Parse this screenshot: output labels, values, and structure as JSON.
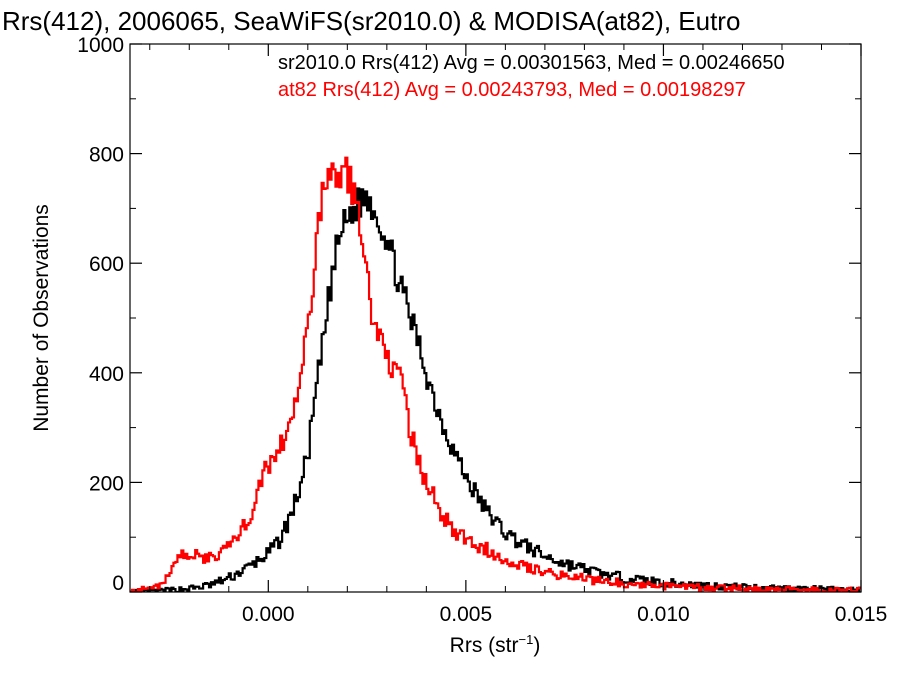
{
  "chart_data": {
    "type": "line",
    "title": "Rrs(412), 2006065, SeaWiFS(sr2010.0) & MODISA(at82), Eutro",
    "xlabel": "Rrs (str",
    "xlabel_sup": "−1",
    "xlabel_close": ")",
    "ylabel": "Number of Observations",
    "xlim": [
      -0.0035,
      0.015
    ],
    "ylim": [
      0,
      1000
    ],
    "xticks": [
      0.0,
      0.005,
      0.01,
      0.015
    ],
    "xtick_labels": [
      "0.000",
      "0.005",
      "0.010",
      "0.015"
    ],
    "yticks": [
      0,
      200,
      400,
      600,
      800,
      1000
    ],
    "ytick_labels": [
      "0",
      "200",
      "400",
      "600",
      "800",
      "1000"
    ],
    "grid": false,
    "series": [
      {
        "name": "sr2010.0",
        "color": "#000000",
        "legend": "sr2010.0 Rrs(412) Avg = 0.00301563, Med = 0.00246650",
        "points": [
          [
            -0.0035,
            0
          ],
          [
            -0.003,
            1
          ],
          [
            -0.0025,
            3
          ],
          [
            -0.002,
            6
          ],
          [
            -0.0015,
            12
          ],
          [
            -0.001,
            25
          ],
          [
            -0.0005,
            45
          ],
          [
            0.0,
            70
          ],
          [
            0.0003,
            95
          ],
          [
            0.0006,
            145
          ],
          [
            0.0008,
            190
          ],
          [
            0.001,
            250
          ],
          [
            0.0012,
            360
          ],
          [
            0.0014,
            460
          ],
          [
            0.0016,
            570
          ],
          [
            0.0018,
            650
          ],
          [
            0.002,
            680
          ],
          [
            0.0022,
            700
          ],
          [
            0.0024,
            720
          ],
          [
            0.0026,
            715
          ],
          [
            0.0028,
            680
          ],
          [
            0.003,
            645
          ],
          [
            0.0032,
            595
          ],
          [
            0.0034,
            545
          ],
          [
            0.0036,
            500
          ],
          [
            0.0038,
            455
          ],
          [
            0.004,
            400
          ],
          [
            0.0043,
            330
          ],
          [
            0.0046,
            275
          ],
          [
            0.005,
            210
          ],
          [
            0.0055,
            150
          ],
          [
            0.006,
            108
          ],
          [
            0.0065,
            85
          ],
          [
            0.007,
            65
          ],
          [
            0.0075,
            52
          ],
          [
            0.008,
            42
          ],
          [
            0.0085,
            32
          ],
          [
            0.009,
            26
          ],
          [
            0.01,
            17
          ],
          [
            0.011,
            12
          ],
          [
            0.012,
            9
          ],
          [
            0.013,
            7
          ],
          [
            0.014,
            5
          ],
          [
            0.015,
            3
          ]
        ]
      },
      {
        "name": "at82",
        "color": "#ff0000",
        "legend": "at82 Rrs(412) Avg = 0.00243793, Med = 0.00198297",
        "points": [
          [
            -0.0035,
            2
          ],
          [
            -0.003,
            6
          ],
          [
            -0.0027,
            15
          ],
          [
            -0.0024,
            45
          ],
          [
            -0.0021,
            75
          ],
          [
            -0.0018,
            65
          ],
          [
            -0.0015,
            60
          ],
          [
            -0.0012,
            75
          ],
          [
            -0.0009,
            92
          ],
          [
            -0.0006,
            120
          ],
          [
            -0.0004,
            150
          ],
          [
            -0.0002,
            195
          ],
          [
            0.0,
            235
          ],
          [
            0.0002,
            250
          ],
          [
            0.0004,
            285
          ],
          [
            0.0006,
            320
          ],
          [
            0.0008,
            375
          ],
          [
            0.001,
            480
          ],
          [
            0.0012,
            620
          ],
          [
            0.0014,
            740
          ],
          [
            0.0016,
            765
          ],
          [
            0.0018,
            770
          ],
          [
            0.002,
            760
          ],
          [
            0.0022,
            720
          ],
          [
            0.0024,
            640
          ],
          [
            0.0026,
            520
          ],
          [
            0.0028,
            470
          ],
          [
            0.003,
            430
          ],
          [
            0.0032,
            410
          ],
          [
            0.0034,
            370
          ],
          [
            0.0036,
            290
          ],
          [
            0.0038,
            240
          ],
          [
            0.004,
            200
          ],
          [
            0.0043,
            155
          ],
          [
            0.0046,
            120
          ],
          [
            0.005,
            95
          ],
          [
            0.0055,
            78
          ],
          [
            0.006,
            62
          ],
          [
            0.0065,
            48
          ],
          [
            0.007,
            38
          ],
          [
            0.0075,
            30
          ],
          [
            0.008,
            24
          ],
          [
            0.009,
            16
          ],
          [
            0.01,
            11
          ],
          [
            0.011,
            8
          ],
          [
            0.012,
            6
          ],
          [
            0.013,
            5
          ],
          [
            0.014,
            4
          ],
          [
            0.015,
            3
          ]
        ]
      }
    ]
  }
}
